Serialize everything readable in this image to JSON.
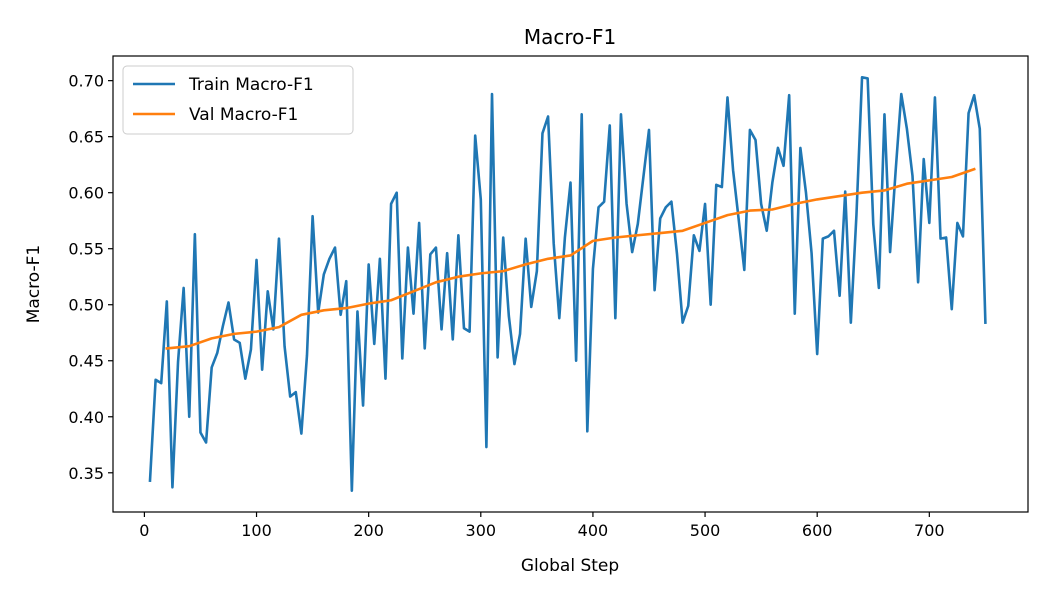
{
  "chart_data": {
    "type": "line",
    "title": "Macro-F1",
    "xlabel": "Global Step",
    "ylabel": "Macro-F1",
    "xlim": [
      -28,
      788
    ],
    "ylim": [
      0.315,
      0.722
    ],
    "xticks": [
      0,
      100,
      200,
      300,
      400,
      500,
      600,
      700
    ],
    "yticks": [
      0.35,
      0.4,
      0.45,
      0.5,
      0.55,
      0.6,
      0.65,
      0.7
    ],
    "xtick_labels": [
      "0",
      "100",
      "200",
      "300",
      "400",
      "500",
      "600",
      "700"
    ],
    "ytick_labels": [
      "0.35",
      "0.40",
      "0.45",
      "0.50",
      "0.55",
      "0.60",
      "0.65",
      "0.70"
    ],
    "grid": false,
    "legend_position": "top-left",
    "series": [
      {
        "name": "Train Macro-F1",
        "color": "#1f77b4",
        "x": [
          5,
          10,
          15,
          20,
          25,
          30,
          35,
          40,
          45,
          50,
          55,
          60,
          65,
          70,
          75,
          80,
          85,
          90,
          95,
          100,
          105,
          110,
          115,
          120,
          125,
          130,
          135,
          140,
          145,
          150,
          155,
          160,
          165,
          170,
          175,
          180,
          185,
          190,
          195,
          200,
          205,
          210,
          215,
          220,
          225,
          230,
          235,
          240,
          245,
          250,
          255,
          260,
          265,
          270,
          275,
          280,
          285,
          290,
          295,
          300,
          305,
          310,
          315,
          320,
          325,
          330,
          335,
          340,
          345,
          350,
          355,
          360,
          365,
          370,
          375,
          380,
          385,
          390,
          395,
          400,
          405,
          410,
          415,
          420,
          425,
          430,
          435,
          440,
          445,
          450,
          455,
          460,
          465,
          470,
          475,
          480,
          485,
          490,
          495,
          500,
          505,
          510,
          515,
          520,
          525,
          530,
          535,
          540,
          545,
          550,
          555,
          560,
          565,
          570,
          575,
          580,
          585,
          590,
          595,
          600,
          605,
          610,
          615,
          620,
          625,
          630,
          635,
          640,
          645,
          650,
          655,
          660,
          665,
          670,
          675,
          680,
          685,
          690,
          695,
          700,
          705,
          710,
          715,
          720,
          725,
          730,
          735,
          740,
          745,
          750
        ],
        "y": [
          0.343,
          0.433,
          0.43,
          0.503,
          0.337,
          0.449,
          0.515,
          0.4,
          0.563,
          0.386,
          0.377,
          0.444,
          0.457,
          0.481,
          0.502,
          0.469,
          0.466,
          0.434,
          0.46,
          0.54,
          0.442,
          0.512,
          0.478,
          0.559,
          0.463,
          0.418,
          0.422,
          0.385,
          0.455,
          0.579,
          0.493,
          0.527,
          0.541,
          0.551,
          0.491,
          0.521,
          0.334,
          0.494,
          0.41,
          0.536,
          0.465,
          0.541,
          0.434,
          0.59,
          0.6,
          0.452,
          0.551,
          0.492,
          0.573,
          0.461,
          0.545,
          0.551,
          0.478,
          0.546,
          0.469,
          0.562,
          0.479,
          0.476,
          0.651,
          0.594,
          0.373,
          0.688,
          0.453,
          0.56,
          0.49,
          0.447,
          0.474,
          0.559,
          0.498,
          0.53,
          0.653,
          0.668,
          0.555,
          0.488,
          0.56,
          0.609,
          0.45,
          0.67,
          0.387,
          0.532,
          0.587,
          0.592,
          0.66,
          0.488,
          0.67,
          0.59,
          0.547,
          0.572,
          0.614,
          0.656,
          0.513,
          0.577,
          0.587,
          0.592,
          0.545,
          0.484,
          0.499,
          0.562,
          0.548,
          0.59,
          0.5,
          0.607,
          0.605,
          0.685,
          0.62,
          0.576,
          0.531,
          0.656,
          0.647,
          0.59,
          0.566,
          0.609,
          0.64,
          0.624,
          0.687,
          0.492,
          0.64,
          0.6,
          0.546,
          0.456,
          0.559,
          0.561,
          0.566,
          0.508,
          0.601,
          0.484,
          0.58,
          0.703,
          0.702,
          0.572,
          0.515,
          0.67,
          0.547,
          0.62,
          0.688,
          0.657,
          0.615,
          0.52,
          0.63,
          0.573,
          0.685,
          0.559,
          0.56,
          0.496,
          0.573,
          0.561,
          0.671,
          0.687,
          0.657,
          0.484
        ]
      },
      {
        "name": "Val Macro-F1",
        "color": "#ff7f0e",
        "x": [
          20,
          40,
          60,
          80,
          100,
          120,
          140,
          160,
          180,
          200,
          220,
          240,
          260,
          280,
          300,
          320,
          340,
          360,
          380,
          400,
          420,
          440,
          460,
          480,
          500,
          520,
          540,
          560,
          580,
          600,
          620,
          640,
          660,
          680,
          700,
          720,
          740
        ],
        "y": [
          0.461,
          0.463,
          0.47,
          0.474,
          0.476,
          0.48,
          0.491,
          0.495,
          0.497,
          0.501,
          0.504,
          0.512,
          0.52,
          0.525,
          0.528,
          0.53,
          0.536,
          0.541,
          0.544,
          0.557,
          0.56,
          0.562,
          0.564,
          0.566,
          0.573,
          0.58,
          0.584,
          0.585,
          0.59,
          0.594,
          0.597,
          0.6,
          0.602,
          0.608,
          0.611,
          0.614,
          0.621
        ]
      }
    ]
  }
}
